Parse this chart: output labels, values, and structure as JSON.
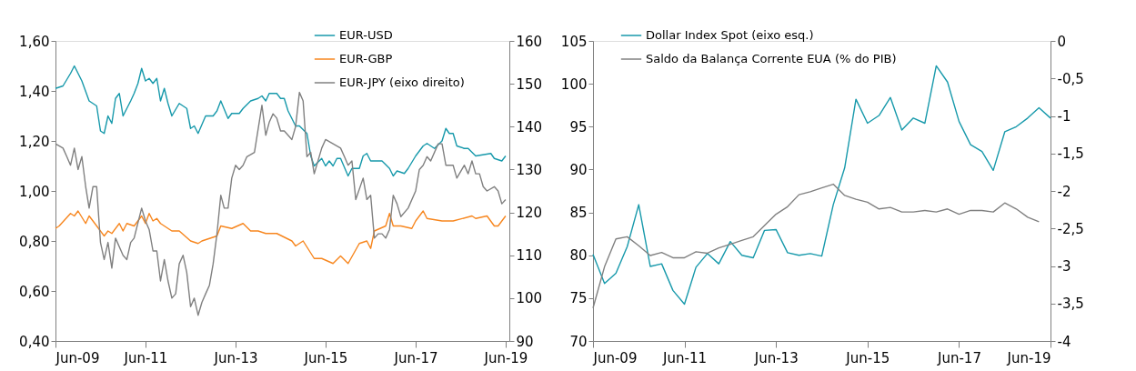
{
  "chart_data": [
    {
      "type": "line",
      "legend": "top right",
      "grid": false,
      "xlim": [
        "2009-06",
        "2019-07"
      ],
      "xticks": [
        {
          "value": "2009-06",
          "label": "Jun-09"
        },
        {
          "value": "2011-06",
          "label": "Jun-11"
        },
        {
          "value": "2013-06",
          "label": "Jun-13"
        },
        {
          "value": "2015-06",
          "label": "Jun-15"
        },
        {
          "value": "2017-06",
          "label": "Jun-17"
        },
        {
          "value": "2019-06",
          "label": "Jun-19"
        }
      ],
      "ylim": [
        0.4,
        1.6
      ],
      "yticks": [
        {
          "value": 0.4,
          "label": "0,40"
        },
        {
          "value": 0.6,
          "label": "0,60"
        },
        {
          "value": 0.8,
          "label": "0,80"
        },
        {
          "value": 1.0,
          "label": "1,00"
        },
        {
          "value": 1.2,
          "label": "1,20"
        },
        {
          "value": 1.4,
          "label": "1,40"
        },
        {
          "value": 1.6,
          "label": "1,60"
        }
      ],
      "y2lim": [
        90,
        160
      ],
      "y2ticks": [
        90,
        100,
        110,
        120,
        130,
        140,
        150,
        160
      ],
      "series": [
        {
          "name": "EUR-USD",
          "color": "#1799ab",
          "x": [
            "2009-06",
            "2009-08",
            "2009-10",
            "2009-11",
            "2010-01",
            "2010-03",
            "2010-05",
            "2010-06",
            "2010-07",
            "2010-08",
            "2010-09",
            "2010-10",
            "2010-11",
            "2010-12",
            "2011-02",
            "2011-03",
            "2011-04",
            "2011-05",
            "2011-06",
            "2011-07",
            "2011-08",
            "2011-09",
            "2011-10",
            "2011-11",
            "2011-12",
            "2012-01",
            "2012-03",
            "2012-05",
            "2012-06",
            "2012-07",
            "2012-08",
            "2012-10",
            "2012-12",
            "2013-01",
            "2013-02",
            "2013-04",
            "2013-05",
            "2013-07",
            "2013-08",
            "2013-10",
            "2013-12",
            "2014-01",
            "2014-02",
            "2014-03",
            "2014-05",
            "2014-06",
            "2014-07",
            "2014-08",
            "2014-10",
            "2014-11",
            "2015-01",
            "2015-02",
            "2015-03",
            "2015-05",
            "2015-06",
            "2015-07",
            "2015-08",
            "2015-09",
            "2015-10",
            "2015-12",
            "2016-01",
            "2016-03",
            "2016-04",
            "2016-05",
            "2016-06",
            "2016-09",
            "2016-11",
            "2016-12",
            "2017-01",
            "2017-03",
            "2017-04",
            "2017-06",
            "2017-08",
            "2017-09",
            "2017-11",
            "2018-01",
            "2018-02",
            "2018-03",
            "2018-04",
            "2018-05",
            "2018-07",
            "2018-08",
            "2018-10",
            "2019-02",
            "2019-03",
            "2019-05",
            "2019-06"
          ],
          "values": [
            1.41,
            1.42,
            1.47,
            1.5,
            1.44,
            1.36,
            1.34,
            1.24,
            1.23,
            1.3,
            1.27,
            1.37,
            1.39,
            1.3,
            1.36,
            1.39,
            1.43,
            1.49,
            1.44,
            1.45,
            1.43,
            1.45,
            1.36,
            1.41,
            1.35,
            1.3,
            1.35,
            1.33,
            1.25,
            1.26,
            1.23,
            1.3,
            1.3,
            1.32,
            1.36,
            1.29,
            1.31,
            1.31,
            1.33,
            1.36,
            1.37,
            1.38,
            1.36,
            1.39,
            1.39,
            1.37,
            1.37,
            1.32,
            1.26,
            1.26,
            1.23,
            1.14,
            1.1,
            1.13,
            1.1,
            1.12,
            1.1,
            1.13,
            1.13,
            1.06,
            1.09,
            1.09,
            1.14,
            1.15,
            1.12,
            1.12,
            1.09,
            1.06,
            1.08,
            1.07,
            1.09,
            1.14,
            1.18,
            1.19,
            1.17,
            1.2,
            1.25,
            1.23,
            1.23,
            1.18,
            1.17,
            1.17,
            1.14,
            1.15,
            1.13,
            1.12,
            1.14
          ]
        },
        {
          "name": "EUR-GBP",
          "color": "#f7861e",
          "x": [
            "2009-06",
            "2009-07",
            "2009-10",
            "2009-11",
            "2009-12",
            "2010-02",
            "2010-03",
            "2010-04",
            "2010-07",
            "2010-08",
            "2010-09",
            "2010-11",
            "2010-12",
            "2011-01",
            "2011-03",
            "2011-05",
            "2011-06",
            "2011-07",
            "2011-08",
            "2011-09",
            "2011-10",
            "2012-01",
            "2012-03",
            "2012-06",
            "2012-08",
            "2012-09",
            "2013-01",
            "2013-02",
            "2013-05",
            "2013-08",
            "2013-10",
            "2013-12",
            "2014-02",
            "2014-05",
            "2014-09",
            "2014-10",
            "2014-12",
            "2015-03",
            "2015-05",
            "2015-08",
            "2015-10",
            "2015-12",
            "2016-03",
            "2016-05",
            "2016-06",
            "2016-07",
            "2016-10",
            "2016-11",
            "2016-12",
            "2017-02",
            "2017-05",
            "2017-06",
            "2017-08",
            "2017-09",
            "2018-01",
            "2018-04",
            "2018-09",
            "2018-10",
            "2019-01",
            "2019-03",
            "2019-04",
            "2019-06"
          ],
          "values": [
            0.85,
            0.86,
            0.91,
            0.9,
            0.92,
            0.87,
            0.9,
            0.88,
            0.82,
            0.84,
            0.83,
            0.87,
            0.84,
            0.87,
            0.86,
            0.9,
            0.87,
            0.91,
            0.88,
            0.89,
            0.87,
            0.84,
            0.84,
            0.8,
            0.79,
            0.8,
            0.82,
            0.86,
            0.85,
            0.87,
            0.84,
            0.84,
            0.83,
            0.83,
            0.8,
            0.78,
            0.8,
            0.73,
            0.73,
            0.71,
            0.74,
            0.71,
            0.79,
            0.8,
            0.77,
            0.84,
            0.86,
            0.91,
            0.86,
            0.86,
            0.85,
            0.88,
            0.92,
            0.89,
            0.88,
            0.88,
            0.9,
            0.89,
            0.9,
            0.86,
            0.86,
            0.9
          ]
        },
        {
          "name": "EUR-JPY (eixo direito)",
          "color": "#808080",
          "axis": "y2",
          "x": [
            "2009-06",
            "2009-08",
            "2009-09",
            "2009-10",
            "2009-11",
            "2009-12",
            "2010-01",
            "2010-02",
            "2010-03",
            "2010-04",
            "2010-05",
            "2010-06",
            "2010-07",
            "2010-08",
            "2010-09",
            "2010-10",
            "2010-12",
            "2011-01",
            "2011-02",
            "2011-03",
            "2011-05",
            "2011-06",
            "2011-07",
            "2011-08",
            "2011-09",
            "2011-10",
            "2011-11",
            "2011-12",
            "2012-01",
            "2012-02",
            "2012-03",
            "2012-04",
            "2012-05",
            "2012-06",
            "2012-07",
            "2012-08",
            "2012-09",
            "2012-10",
            "2012-11",
            "2012-12",
            "2013-01",
            "2013-02",
            "2013-03",
            "2013-04",
            "2013-05",
            "2013-06",
            "2013-07",
            "2013-08",
            "2013-09",
            "2013-11",
            "2014-01",
            "2014-02",
            "2014-03",
            "2014-04",
            "2014-05",
            "2014-06",
            "2014-07",
            "2014-08",
            "2014-09",
            "2014-10",
            "2014-11",
            "2014-12",
            "2015-01",
            "2015-02",
            "2015-03",
            "2015-05",
            "2015-06",
            "2015-08",
            "2015-10",
            "2015-11",
            "2015-12",
            "2016-01",
            "2016-02",
            "2016-04",
            "2016-05",
            "2016-06",
            "2016-07",
            "2016-08",
            "2016-09",
            "2016-10",
            "2016-11",
            "2016-12",
            "2017-01",
            "2017-02",
            "2017-04",
            "2017-06",
            "2017-07",
            "2017-08",
            "2017-09",
            "2017-10",
            "2017-12",
            "2018-01",
            "2018-02",
            "2018-04",
            "2018-05",
            "2018-07",
            "2018-08",
            "2018-09",
            "2018-10",
            "2018-11",
            "2018-12",
            "2019-01",
            "2019-03",
            "2019-04",
            "2019-05",
            "2019-06"
          ],
          "values": [
            136,
            135,
            133,
            131,
            135,
            130,
            133,
            126,
            121,
            126,
            126,
            113,
            109,
            113,
            107,
            114,
            110,
            109,
            113,
            114,
            121,
            118,
            116,
            111,
            111,
            104,
            109,
            104,
            100,
            101,
            108,
            110,
            106,
            98,
            100,
            96,
            99,
            101,
            103,
            108,
            115,
            124,
            121,
            121,
            128,
            131,
            130,
            131,
            133,
            134,
            145,
            138,
            141,
            143,
            142,
            139,
            139,
            138,
            137,
            140,
            148,
            146,
            133,
            134,
            129,
            135,
            137,
            136,
            135,
            133,
            131,
            132,
            123,
            128,
            123,
            124,
            114,
            115,
            115,
            114,
            116,
            124,
            122,
            119,
            121,
            125,
            130,
            131,
            133,
            132,
            136,
            136,
            131,
            131,
            128,
            131,
            129,
            132,
            129,
            129,
            126,
            125,
            126,
            125,
            122,
            123
          ]
        }
      ]
    },
    {
      "type": "line",
      "legend": "top left",
      "grid": false,
      "xlim": [
        "2009-06",
        "2019-06"
      ],
      "xticks": [
        {
          "value": "2009-06",
          "label": "Jun-09"
        },
        {
          "value": "2011-06",
          "label": "Jun-11"
        },
        {
          "value": "2013-06",
          "label": "Jun-13"
        },
        {
          "value": "2015-06",
          "label": "Jun-15"
        },
        {
          "value": "2017-06",
          "label": "Jun-17"
        },
        {
          "value": "2019-06",
          "label": "Jun-19"
        }
      ],
      "ylim": [
        70,
        105
      ],
      "yticks": [
        70,
        75,
        80,
        85,
        90,
        95,
        100,
        105
      ],
      "y2lim": [
        -4,
        0
      ],
      "y2ticks": [
        -4,
        {
          "value": -3.5,
          "label": "-3,5"
        },
        -3,
        {
          "value": -2.5,
          "label": "-2,5"
        },
        -2,
        {
          "value": -1.5,
          "label": "-1,5"
        },
        -1,
        {
          "value": -0.5,
          "label": "-0,5"
        },
        0
      ],
      "series": [
        {
          "name": "Dollar Index Spot (eixo esq.)",
          "color": "#1799ab",
          "x": [
            "2009-06",
            "2009-09",
            "2009-12",
            "2010-03",
            "2010-06",
            "2010-09",
            "2010-12",
            "2011-03",
            "2011-06",
            "2011-09",
            "2011-12",
            "2012-03",
            "2012-06",
            "2012-09",
            "2012-12",
            "2013-03",
            "2013-06",
            "2013-09",
            "2013-12",
            "2014-03",
            "2014-06",
            "2014-09",
            "2014-12",
            "2015-03",
            "2015-06",
            "2015-09",
            "2015-12",
            "2016-03",
            "2016-06",
            "2016-09",
            "2016-12",
            "2017-03",
            "2017-06",
            "2017-09",
            "2017-12",
            "2018-03",
            "2018-06",
            "2018-09",
            "2018-12",
            "2019-03",
            "2019-06"
          ],
          "values": [
            80.1,
            76.7,
            77.9,
            81.0,
            85.9,
            78.7,
            79.0,
            75.9,
            74.3,
            78.6,
            80.2,
            79.0,
            81.6,
            80.0,
            79.7,
            82.9,
            83.0,
            80.3,
            80.0,
            80.2,
            79.9,
            85.9,
            90.2,
            98.2,
            95.4,
            96.3,
            98.4,
            94.6,
            96.0,
            95.4,
            102.1,
            100.2,
            95.6,
            92.9,
            92.1,
            89.9,
            94.4,
            95.0,
            96.0,
            97.2,
            96.0
          ]
        },
        {
          "name": "Saldo da Balança Corrente EUA (% do PIB)",
          "color": "#808080",
          "axis": "y2",
          "x": [
            "2009-06",
            "2009-09",
            "2009-12",
            "2010-03",
            "2010-06",
            "2010-09",
            "2010-12",
            "2011-03",
            "2011-06",
            "2011-09",
            "2011-12",
            "2012-03",
            "2012-06",
            "2012-09",
            "2012-12",
            "2013-03",
            "2013-06",
            "2013-09",
            "2013-12",
            "2014-03",
            "2014-06",
            "2014-09",
            "2014-12",
            "2015-03",
            "2015-06",
            "2015-09",
            "2015-12",
            "2016-03",
            "2016-06",
            "2016-09",
            "2016-12",
            "2017-03",
            "2017-06",
            "2017-09",
            "2017-12",
            "2018-03",
            "2018-06",
            "2018-09",
            "2018-12",
            "2019-03"
          ],
          "values": [
            -3.56,
            -3.01,
            -2.64,
            -2.61,
            -2.73,
            -2.86,
            -2.82,
            -2.89,
            -2.89,
            -2.81,
            -2.83,
            -2.76,
            -2.71,
            -2.66,
            -2.61,
            -2.46,
            -2.31,
            -2.21,
            -2.05,
            -2.01,
            -1.96,
            -1.91,
            -2.06,
            -2.11,
            -2.15,
            -2.24,
            -2.22,
            -2.28,
            -2.28,
            -2.26,
            -2.28,
            -2.24,
            -2.31,
            -2.26,
            -2.26,
            -2.28,
            -2.16,
            -2.24,
            -2.35,
            -2.41
          ]
        }
      ]
    }
  ]
}
